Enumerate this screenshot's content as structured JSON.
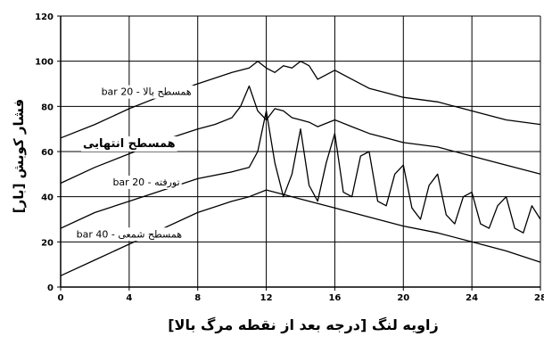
{
  "chart_data": {
    "type": "line",
    "xlabel": "زاویه لنگ [درجه بعد از نقطه مرگ بالا]",
    "ylabel": "فشار کوبش [بار]",
    "xlim": [
      0,
      28
    ],
    "ylim": [
      0,
      120
    ],
    "xticks": [
      "0",
      "4",
      "8",
      "12",
      "16",
      "20",
      "24",
      "28"
    ],
    "yticks": [
      "0",
      "20",
      "40",
      "60",
      "80",
      "100",
      "120"
    ],
    "grid": true,
    "series": [
      {
        "name": "همسطح بالا - 20 bar",
        "label_x": 5,
        "label_y": 85,
        "x": [
          0,
          2,
          4,
          6,
          8,
          10,
          11,
          11.5,
          12,
          12.5,
          13,
          13.5,
          14,
          14.5,
          15,
          16,
          17,
          18,
          19,
          20,
          22,
          24,
          26,
          28
        ],
        "y": [
          66,
          72,
          79,
          85,
          90,
          95,
          97,
          100,
          97,
          95,
          98,
          97,
          100,
          98,
          92,
          96,
          92,
          88,
          86,
          84,
          82,
          78,
          74,
          72
        ]
      },
      {
        "name": "همسطح انتهایی",
        "label_x": 4,
        "label_y": 62,
        "x": [
          0,
          2,
          4,
          6,
          8,
          9,
          10,
          10.5,
          11,
          11.5,
          12,
          12.5,
          13,
          13.5,
          14,
          14.5,
          15,
          16,
          17,
          18,
          19,
          20,
          22,
          24,
          26,
          28
        ],
        "y": [
          46,
          53,
          59,
          65,
          70,
          72,
          75,
          80,
          89,
          78,
          74,
          79,
          78,
          75,
          74,
          73,
          71,
          74,
          71,
          68,
          66,
          64,
          62,
          58,
          54,
          50
        ]
      },
      {
        "name": "تورفته - 20 bar",
        "label_x": 5,
        "label_y": 45,
        "x": [
          0,
          2,
          4,
          6,
          8,
          10,
          11,
          11.5,
          12,
          12.5,
          13,
          13.5,
          14,
          14.5,
          15,
          15.5,
          16,
          16.5,
          17,
          17.5,
          18,
          18.5,
          19,
          19.5,
          20,
          20.5,
          21,
          21.5,
          22,
          22.5,
          23,
          23.5,
          24,
          24.5,
          25,
          25.5,
          26,
          26.5,
          27,
          27.5,
          28
        ],
        "y": [
          26,
          33,
          38,
          43,
          48,
          51,
          53,
          60,
          78,
          55,
          40,
          50,
          70,
          45,
          38,
          55,
          68,
          42,
          40,
          58,
          60,
          38,
          36,
          50,
          54,
          35,
          30,
          45,
          50,
          32,
          28,
          40,
          42,
          28,
          26,
          36,
          40,
          26,
          24,
          36,
          30
        ]
      },
      {
        "name": "همسطح شمعی - 40 bar",
        "label_x": 4,
        "label_y": 22,
        "x": [
          0,
          2,
          4,
          6,
          8,
          10,
          11,
          12,
          13,
          14,
          15,
          16,
          17,
          18,
          20,
          22,
          24,
          26,
          28
        ],
        "y": [
          5,
          12,
          19,
          26,
          33,
          38,
          40,
          43,
          41,
          39,
          37,
          35,
          33,
          31,
          27,
          24,
          20,
          16,
          11
        ]
      }
    ]
  }
}
